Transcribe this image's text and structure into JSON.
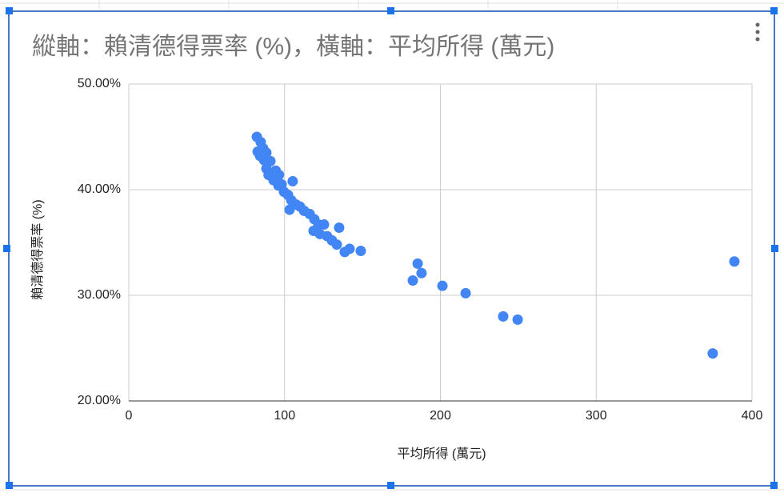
{
  "chart_data": {
    "type": "scatter",
    "title": "縱軸：賴清德得票率 (%)，橫軸：平均所得 (萬元)",
    "x_label": "平均所得 (萬元)",
    "y_label": "賴清德得票率 (%)",
    "color": "#4285f4",
    "grid": true,
    "xlim": [
      0,
      400
    ],
    "xticks": [
      0,
      100,
      200,
      300,
      400
    ],
    "ylim": [
      20,
      50
    ],
    "yticks": [
      {
        "value": 20,
        "label": "20.00%"
      },
      {
        "value": 30,
        "label": "30.00%"
      },
      {
        "value": 40,
        "label": "40.00%"
      },
      {
        "value": 50,
        "label": "50.00%"
      }
    ],
    "x": [
      82.2,
      82.7,
      84.7,
      86.3,
      88.3,
      84.2,
      86.8,
      90.9,
      88.3,
      89.7,
      94.3,
      96.4,
      92.9,
      96.0,
      98.1,
      99.6,
      105.2,
      102.2,
      104.3,
      107.3,
      103.2,
      109.9,
      112.5,
      116.1,
      119.1,
      121.7,
      125.3,
      118.6,
      122.7,
      127.3,
      130.4,
      133.5,
      135.0,
      138.6,
      141.7,
      148.9,
      182.3,
      185.4,
      187.9,
      201.3,
      216.2,
      240.3,
      249.6,
      374.8,
      388.7
    ],
    "values": [
      45.0,
      43.6,
      44.5,
      43.9,
      43.5,
      43.2,
      42.8,
      42.7,
      42.0,
      41.4,
      41.8,
      41.4,
      40.9,
      40.4,
      40.5,
      39.8,
      40.8,
      39.5,
      39.0,
      38.6,
      38.1,
      38.4,
      38.0,
      37.7,
      37.2,
      36.7,
      36.7,
      36.1,
      35.8,
      35.6,
      35.2,
      34.8,
      36.4,
      34.1,
      34.4,
      34.2,
      31.4,
      33.0,
      32.1,
      30.9,
      30.2,
      28.0,
      27.7,
      24.5,
      33.2
    ]
  }
}
